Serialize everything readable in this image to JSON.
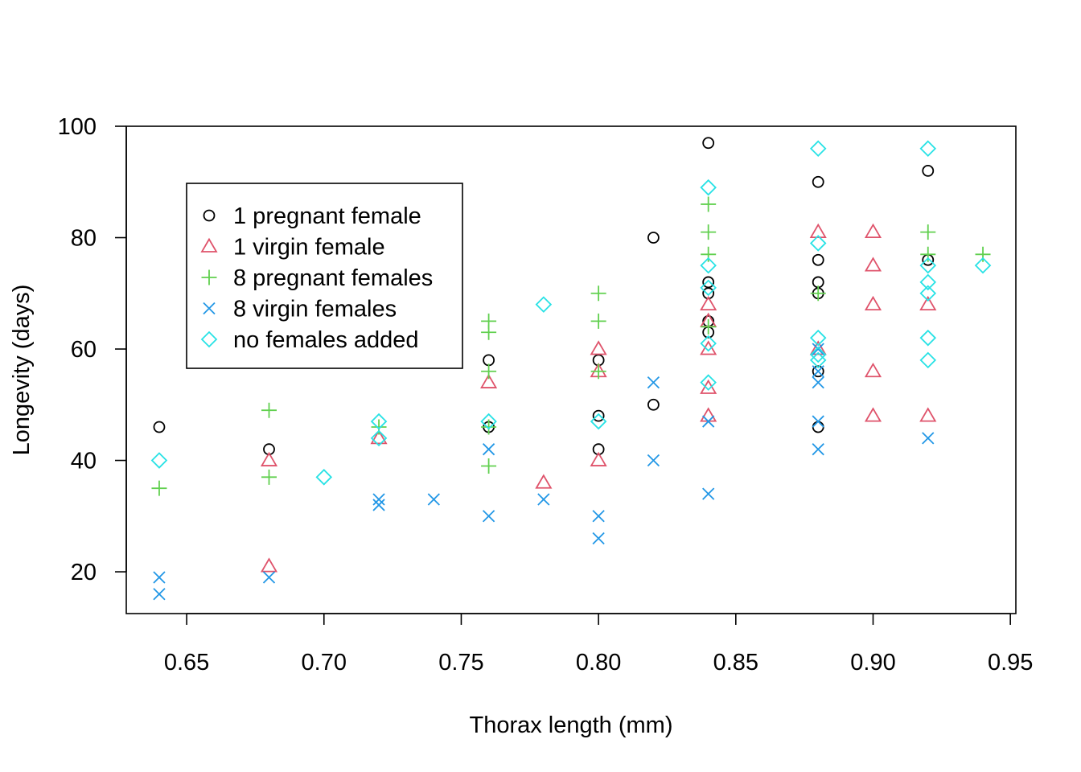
{
  "chart_data": {
    "type": "scatter",
    "title": "",
    "xlabel": "Thorax length (mm)",
    "ylabel": "Longevity (days)",
    "xlim": [
      0.628,
      0.952
    ],
    "ylim": [
      12.5,
      100
    ],
    "xticks": [
      "0.65",
      "0.70",
      "0.75",
      "0.80",
      "0.85",
      "0.90",
      "0.95"
    ],
    "yticks": [
      "20",
      "40",
      "60",
      "80",
      "100"
    ],
    "grid": false,
    "legend_position": "top-left",
    "series": [
      {
        "name": "1 pregnant female",
        "marker": "circle",
        "color": "#000000",
        "points": [
          [
            0.64,
            46
          ],
          [
            0.68,
            42
          ],
          [
            0.76,
            58
          ],
          [
            0.76,
            46
          ],
          [
            0.8,
            58
          ],
          [
            0.8,
            48
          ],
          [
            0.8,
            42
          ],
          [
            0.82,
            80
          ],
          [
            0.82,
            50
          ],
          [
            0.84,
            97
          ],
          [
            0.84,
            72
          ],
          [
            0.84,
            70
          ],
          [
            0.84,
            65
          ],
          [
            0.84,
            63
          ],
          [
            0.88,
            90
          ],
          [
            0.88,
            76
          ],
          [
            0.88,
            72
          ],
          [
            0.88,
            70
          ],
          [
            0.88,
            56
          ],
          [
            0.88,
            46
          ],
          [
            0.92,
            92
          ],
          [
            0.92,
            76
          ]
        ]
      },
      {
        "name": "1 virgin female",
        "marker": "triangle",
        "color": "#DF536B",
        "points": [
          [
            0.68,
            40
          ],
          [
            0.68,
            21
          ],
          [
            0.72,
            44
          ],
          [
            0.76,
            54
          ],
          [
            0.78,
            36
          ],
          [
            0.8,
            60
          ],
          [
            0.8,
            56
          ],
          [
            0.8,
            40
          ],
          [
            0.84,
            68
          ],
          [
            0.84,
            65
          ],
          [
            0.84,
            60
          ],
          [
            0.84,
            53
          ],
          [
            0.84,
            48
          ],
          [
            0.88,
            81
          ],
          [
            0.88,
            60
          ],
          [
            0.9,
            81
          ],
          [
            0.9,
            75
          ],
          [
            0.9,
            68
          ],
          [
            0.9,
            56
          ],
          [
            0.9,
            48
          ],
          [
            0.92,
            68
          ],
          [
            0.92,
            48
          ]
        ]
      },
      {
        "name": "8 pregnant females",
        "marker": "plus",
        "color": "#61D04F",
        "points": [
          [
            0.64,
            35
          ],
          [
            0.68,
            49
          ],
          [
            0.68,
            37
          ],
          [
            0.72,
            46
          ],
          [
            0.76,
            65
          ],
          [
            0.76,
            63
          ],
          [
            0.76,
            56
          ],
          [
            0.76,
            46
          ],
          [
            0.76,
            39
          ],
          [
            0.8,
            70
          ],
          [
            0.8,
            65
          ],
          [
            0.8,
            56
          ],
          [
            0.84,
            86
          ],
          [
            0.84,
            81
          ],
          [
            0.84,
            77
          ],
          [
            0.84,
            64
          ],
          [
            0.88,
            70
          ],
          [
            0.92,
            81
          ],
          [
            0.92,
            77
          ],
          [
            0.94,
            77
          ]
        ]
      },
      {
        "name": "8 virgin females",
        "marker": "cross",
        "color": "#2297E6",
        "points": [
          [
            0.64,
            19
          ],
          [
            0.64,
            16
          ],
          [
            0.68,
            19
          ],
          [
            0.72,
            33
          ],
          [
            0.72,
            32
          ],
          [
            0.74,
            33
          ],
          [
            0.76,
            42
          ],
          [
            0.76,
            30
          ],
          [
            0.78,
            33
          ],
          [
            0.8,
            30
          ],
          [
            0.8,
            26
          ],
          [
            0.82,
            54
          ],
          [
            0.82,
            40
          ],
          [
            0.84,
            47
          ],
          [
            0.84,
            34
          ],
          [
            0.88,
            60
          ],
          [
            0.88,
            56
          ],
          [
            0.88,
            54
          ],
          [
            0.88,
            47
          ],
          [
            0.88,
            42
          ],
          [
            0.92,
            44
          ]
        ]
      },
      {
        "name": "no females added",
        "marker": "diamond",
        "color": "#28E2E5",
        "points": [
          [
            0.64,
            40
          ],
          [
            0.7,
            37
          ],
          [
            0.72,
            47
          ],
          [
            0.72,
            44
          ],
          [
            0.76,
            47
          ],
          [
            0.78,
            68
          ],
          [
            0.8,
            47
          ],
          [
            0.84,
            89
          ],
          [
            0.84,
            75
          ],
          [
            0.84,
            71
          ],
          [
            0.84,
            61
          ],
          [
            0.84,
            54
          ],
          [
            0.88,
            96
          ],
          [
            0.88,
            79
          ],
          [
            0.88,
            62
          ],
          [
            0.88,
            59
          ],
          [
            0.88,
            58
          ],
          [
            0.92,
            96
          ],
          [
            0.92,
            75
          ],
          [
            0.92,
            72
          ],
          [
            0.92,
            70
          ],
          [
            0.92,
            62
          ],
          [
            0.92,
            58
          ],
          [
            0.94,
            75
          ]
        ]
      }
    ]
  }
}
